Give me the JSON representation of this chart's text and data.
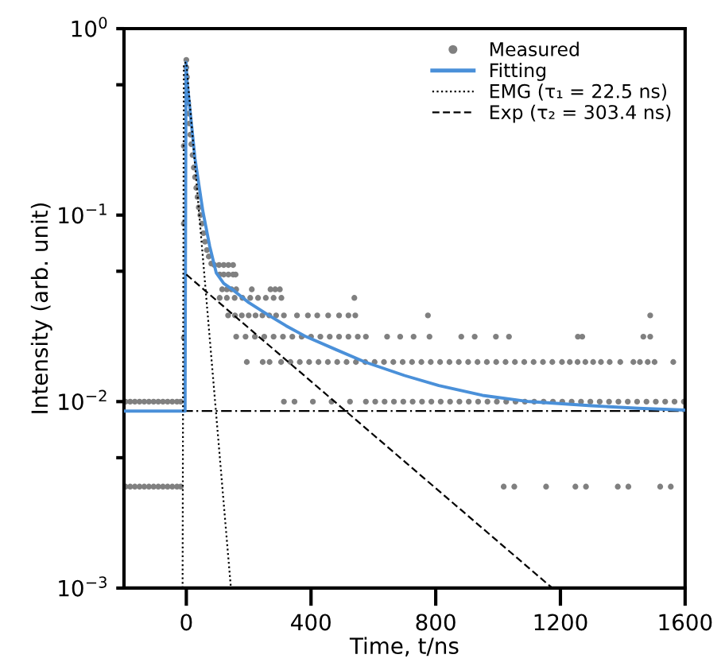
{
  "chart_data": {
    "type": "scatter",
    "xlabel": "Time, t/ns",
    "ylabel": "Intensity (arb. unit)",
    "log": "y",
    "xlim": [
      -200,
      1600
    ],
    "xticks": [
      0,
      400,
      800,
      1200,
      1600
    ],
    "ylim": [
      0.001,
      1
    ],
    "yticks": [
      {
        "value": 0.001,
        "label": "10$^{−3}$"
      },
      {
        "value": 0.005,
        "label": null
      },
      {
        "value": 0.01,
        "label": "10$^{−2}$"
      },
      {
        "value": 0.05,
        "label": null
      },
      {
        "value": 0.1,
        "label": "10$^{−1}$"
      },
      {
        "value": 0.5,
        "label": null
      },
      {
        "value": 1,
        "label": "10$^{0}$"
      }
    ],
    "grid": false,
    "legend": "top right",
    "series": [
      {
        "name": "Measured",
        "marker": "circle",
        "color": "#808080",
        "x": [
          -195,
          -180,
          -165,
          -150,
          -135,
          -120,
          -105,
          -90,
          -75,
          -60,
          -45,
          -30,
          -18,
          -195,
          -180,
          -165,
          -150,
          -135,
          -120,
          -105,
          -90,
          -75,
          -60,
          -45,
          -30,
          -18,
          -8,
          -8,
          -8,
          0,
          0,
          2,
          6,
          8,
          10,
          13,
          16,
          20,
          24,
          28,
          32,
          36,
          40,
          45,
          50,
          55,
          60,
          66,
          72,
          80,
          90,
          105,
          120,
          135,
          150,
          107,
          120,
          135,
          150,
          158,
          115,
          130,
          145,
          160,
          210,
          270,
          285,
          300,
          107,
          130,
          155,
          180,
          205,
          230,
          255,
          280,
          305,
          539,
          134,
          156,
          178,
          200,
          222,
          244,
          266,
          288,
          313,
          355,
          390,
          420,
          455,
          490,
          520,
          542,
          775,
          1488,
          160,
          190,
          220,
          250,
          280,
          310,
          340,
          370,
          400,
          430,
          460,
          490,
          520,
          550,
          576,
          644,
          686,
          729,
          780,
          882,
          925,
          993,
          1035,
          1256,
          1270,
          1466,
          1488,
          194,
          245,
          267,
          304,
          334,
          364,
          394,
          424,
          454,
          484,
          514,
          544,
          574,
          604,
          634,
          664,
          694,
          724,
          754,
          784,
          814,
          844,
          874,
          904,
          934,
          964,
          994,
          1024,
          1054,
          1084,
          1114,
          1144,
          1174,
          1205,
          1230,
          1255,
          1280,
          1305,
          1330,
          1358,
          1392,
          1434,
          1455,
          1480,
          1502,
          1562,
          313,
          347,
          406,
          466,
          525,
          576,
          606,
          636,
          666,
          696,
          726,
          756,
          786,
          816,
          846,
          876,
          906,
          936,
          966,
          996,
          1026,
          1056,
          1086,
          1116,
          1146,
          1176,
          1206,
          1236,
          1266,
          1296,
          1326,
          1356,
          1386,
          1416,
          1446,
          1476,
          1506,
          1536,
          1566,
          1596,
          1018,
          1052,
          1154,
          1248,
          1282,
          1384,
          1418,
          1520,
          1554
        ],
        "values": [
          0.01,
          0.01,
          0.01,
          0.01,
          0.01,
          0.01,
          0.01,
          0.01,
          0.01,
          0.01,
          0.01,
          0.01,
          0.01,
          0.0035,
          0.0035,
          0.0035,
          0.0035,
          0.0035,
          0.0035,
          0.0035,
          0.0035,
          0.0035,
          0.0035,
          0.0035,
          0.0035,
          0.0035,
          0.022,
          0.09,
          0.235,
          0.68,
          0.62,
          0.55,
          0.4,
          0.35,
          0.31,
          0.27,
          0.24,
          0.21,
          0.18,
          0.16,
          0.14,
          0.125,
          0.11,
          0.1,
          0.09,
          0.08,
          0.072,
          0.065,
          0.06,
          0.055,
          0.054,
          0.054,
          0.054,
          0.054,
          0.054,
          0.048,
          0.048,
          0.048,
          0.048,
          0.048,
          0.04,
          0.04,
          0.04,
          0.04,
          0.04,
          0.04,
          0.04,
          0.04,
          0.036,
          0.036,
          0.036,
          0.036,
          0.036,
          0.036,
          0.036,
          0.036,
          0.036,
          0.036,
          0.029,
          0.029,
          0.029,
          0.029,
          0.029,
          0.029,
          0.029,
          0.029,
          0.029,
          0.029,
          0.029,
          0.029,
          0.029,
          0.029,
          0.029,
          0.029,
          0.029,
          0.029,
          0.0223,
          0.0223,
          0.0223,
          0.0223,
          0.0223,
          0.0223,
          0.0223,
          0.0223,
          0.0223,
          0.0223,
          0.0223,
          0.0223,
          0.0223,
          0.0223,
          0.0223,
          0.0223,
          0.0223,
          0.0223,
          0.0223,
          0.0223,
          0.0223,
          0.0223,
          0.0223,
          0.0223,
          0.0223,
          0.0223,
          0.0223,
          0.0163,
          0.0163,
          0.0163,
          0.0163,
          0.0163,
          0.0163,
          0.0163,
          0.0163,
          0.0163,
          0.0163,
          0.0163,
          0.0163,
          0.0163,
          0.0163,
          0.0163,
          0.0163,
          0.0163,
          0.0163,
          0.0163,
          0.0163,
          0.0163,
          0.0163,
          0.0163,
          0.0163,
          0.0163,
          0.0163,
          0.0163,
          0.0163,
          0.0163,
          0.0163,
          0.0163,
          0.0163,
          0.0163,
          0.0163,
          0.0163,
          0.0163,
          0.0163,
          0.0163,
          0.0163,
          0.0163,
          0.0163,
          0.0163,
          0.0163,
          0.0163,
          0.0163,
          0.0163,
          0.01,
          0.01,
          0.01,
          0.01,
          0.01,
          0.01,
          0.01,
          0.01,
          0.01,
          0.01,
          0.01,
          0.01,
          0.01,
          0.01,
          0.01,
          0.01,
          0.01,
          0.01,
          0.01,
          0.01,
          0.01,
          0.01,
          0.01,
          0.01,
          0.01,
          0.01,
          0.01,
          0.01,
          0.01,
          0.01,
          0.01,
          0.01,
          0.01,
          0.01,
          0.01,
          0.01,
          0.01,
          0.01,
          0.01,
          0.01,
          0.0035,
          0.0035,
          0.0035,
          0.0035,
          0.0035,
          0.0035,
          0.0035,
          0.0035,
          0.0035
        ]
      },
      {
        "name": "Fitting",
        "type": "line",
        "marker": "none",
        "line_style": "solid",
        "color": "#4a90d9",
        "x": [
          -200,
          -4,
          -1,
          2,
          28,
          53,
          75,
          96,
          120,
          147,
          200,
          265,
          320,
          384,
          480,
          573,
          700,
          810,
          950,
          1100,
          1300,
          1450,
          1600
        ],
        "values": [
          0.0089,
          0.0089,
          0.66,
          0.53,
          0.2,
          0.105,
          0.068,
          0.049,
          0.043,
          0.04,
          0.034,
          0.029,
          0.0255,
          0.0223,
          0.019,
          0.0163,
          0.0138,
          0.0122,
          0.0108,
          0.01,
          0.0095,
          0.0092,
          0.009
        ]
      },
      {
        "name": "EMG (τ₁ = 22.5 ns)",
        "type": "line",
        "marker": "none",
        "line_style": "dotted",
        "color": "#000000",
        "x": [
          -12,
          -8,
          0,
          143
        ],
        "values": [
          0.001,
          0.65,
          0.66,
          0.001
        ]
      },
      {
        "name": "Exp (τ₂ = 303.4 ns)",
        "type": "line",
        "marker": "none",
        "line_style": "dashed",
        "color": "#000000",
        "x": [
          0,
          1174
        ],
        "values": [
          0.048,
          0.001
        ]
      }
    ],
    "ref_lines": [
      {
        "axis": "y",
        "value": 0.0089,
        "color": "#000000",
        "line_style": "dashdot",
        "label": null
      }
    ]
  }
}
